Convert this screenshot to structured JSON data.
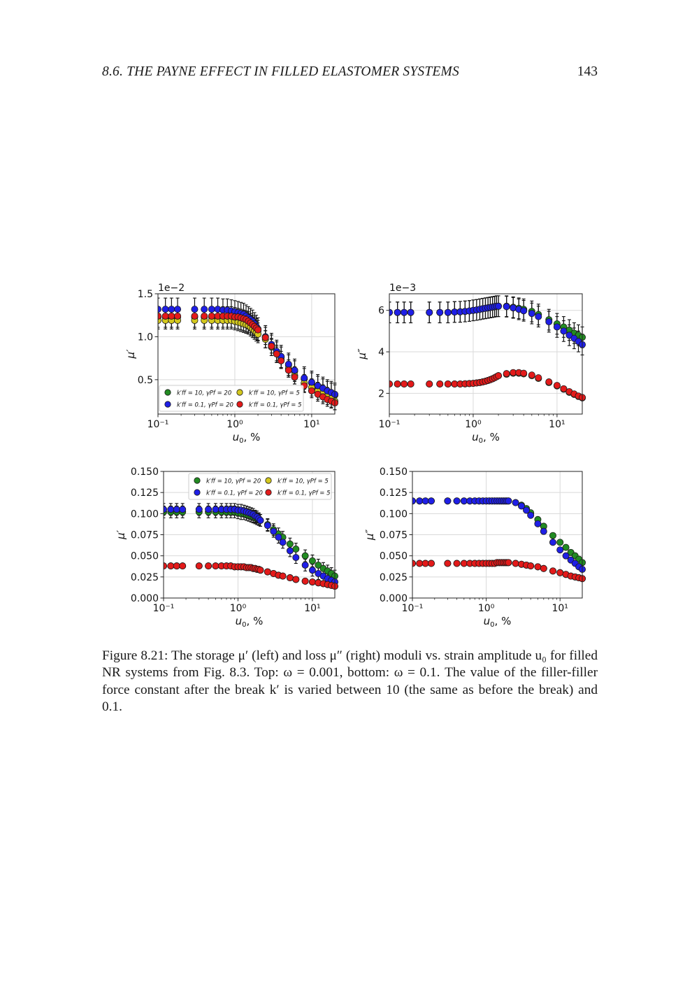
{
  "header": {
    "section_title": "8.6.  THE PAYNE EFFECT IN FILLED ELASTOMER SYSTEMS",
    "page_number": "143"
  },
  "caption": {
    "text": "Figure 8.21: The storage μ′ (left) and loss μ″ (right) moduli vs. strain amplitude u₀ for filled NR systems from Fig. 8.3. Top: ω = 0.001, bottom: ω = 0.1. The value of the filler-filler force constant after the break k′ is varied between 10 (the same as before the break) and 0.1."
  },
  "legend": {
    "entries": [
      {
        "label": "k′ff = 10, γPf = 20",
        "color": "#228b22"
      },
      {
        "label": "k′ff = 10, γPf = 5",
        "color": "#d4c81e"
      },
      {
        "label": "k′ff = 0.1, γPf = 20",
        "color": "#1f1fe6"
      },
      {
        "label": "k′ff = 0.1, γPf = 5",
        "color": "#e31a1a"
      }
    ]
  },
  "chart_data": [
    {
      "type": "scatter",
      "panel": "top-left",
      "xscale": "log",
      "xlim": [
        0.1,
        20
      ],
      "ylim": [
        0.1,
        1.5
      ],
      "offset_text": "1e−2",
      "xlabel": "u0, %",
      "ylabel": "μ′",
      "legend_position": "lower-left",
      "grid": true,
      "xticks": [
        {
          "v": 0.1,
          "label": "10⁻¹"
        },
        {
          "v": 1,
          "label": "10⁰"
        },
        {
          "v": 10,
          "label": "10¹"
        }
      ],
      "yticks": [
        {
          "v": 0.5,
          "label": "0.5"
        },
        {
          "v": 1.0,
          "label": "1.0"
        },
        {
          "v": 1.5,
          "label": "1.5"
        }
      ],
      "x": [
        0.1,
        0.125,
        0.15,
        0.18,
        0.3,
        0.4,
        0.5,
        0.6,
        0.7,
        0.8,
        0.9,
        1.0,
        1.1,
        1.2,
        1.3,
        1.4,
        1.5,
        1.6,
        1.7,
        1.8,
        1.9,
        2.0,
        2.5,
        3.0,
        3.5,
        4.0,
        5.0,
        6.0,
        8.0,
        10.0,
        12.0,
        14.0,
        16.0,
        18.0,
        20.0
      ],
      "series": [
        {
          "color": "#228b22",
          "err": 0.12,
          "y": [
            1.23,
            1.23,
            1.23,
            1.23,
            1.23,
            1.23,
            1.23,
            1.23,
            1.23,
            1.23,
            1.23,
            1.22,
            1.21,
            1.2,
            1.19,
            1.18,
            1.17,
            1.15,
            1.13,
            1.11,
            1.09,
            1.07,
            0.99,
            0.9,
            0.82,
            0.76,
            0.67,
            0.6,
            0.51,
            0.46,
            0.42,
            0.39,
            0.36,
            0.34,
            0.32
          ]
        },
        {
          "color": "#d4c81e",
          "err": 0.1,
          "y": [
            1.19,
            1.19,
            1.19,
            1.19,
            1.19,
            1.19,
            1.19,
            1.19,
            1.19,
            1.19,
            1.19,
            1.18,
            1.17,
            1.16,
            1.15,
            1.14,
            1.13,
            1.11,
            1.09,
            1.07,
            1.05,
            1.03,
            0.97,
            0.88,
            0.8,
            0.73,
            0.63,
            0.55,
            0.46,
            0.41,
            0.37,
            0.34,
            0.31,
            0.28,
            0.25
          ]
        },
        {
          "color": "#1f1fe6",
          "err": 0.13,
          "y": [
            1.32,
            1.32,
            1.32,
            1.32,
            1.32,
            1.32,
            1.32,
            1.32,
            1.31,
            1.31,
            1.3,
            1.29,
            1.28,
            1.27,
            1.26,
            1.24,
            1.22,
            1.2,
            1.18,
            1.15,
            1.12,
            1.09,
            1.0,
            0.91,
            0.83,
            0.77,
            0.68,
            0.61,
            0.52,
            0.47,
            0.43,
            0.4,
            0.37,
            0.35,
            0.33
          ]
        },
        {
          "color": "#e31a1a",
          "err": 0.08,
          "y": [
            1.24,
            1.24,
            1.24,
            1.24,
            1.24,
            1.24,
            1.24,
            1.24,
            1.24,
            1.24,
            1.24,
            1.23,
            1.23,
            1.22,
            1.21,
            1.2,
            1.18,
            1.16,
            1.14,
            1.12,
            1.1,
            1.08,
            0.99,
            0.89,
            0.8,
            0.72,
            0.61,
            0.53,
            0.43,
            0.37,
            0.33,
            0.3,
            0.27,
            0.25,
            0.23
          ]
        }
      ]
    },
    {
      "type": "scatter",
      "panel": "top-right",
      "xscale": "log",
      "xlim": [
        0.1,
        20
      ],
      "ylim": [
        1.0,
        6.8
      ],
      "offset_text": "1e−3",
      "xlabel": "u0, %",
      "ylabel": "μ″",
      "grid": true,
      "xticks": [
        {
          "v": 0.1,
          "label": "10⁻¹"
        },
        {
          "v": 1,
          "label": "10⁰"
        },
        {
          "v": 10,
          "label": "10¹"
        }
      ],
      "yticks": [
        {
          "v": 2,
          "label": "2"
        },
        {
          "v": 4,
          "label": "4"
        },
        {
          "v": 6,
          "label": "6"
        }
      ],
      "x": [
        0.1,
        0.125,
        0.15,
        0.18,
        0.3,
        0.4,
        0.5,
        0.6,
        0.7,
        0.8,
        0.9,
        1.0,
        1.1,
        1.2,
        1.3,
        1.4,
        1.5,
        1.6,
        1.7,
        1.8,
        1.9,
        2.0,
        2.5,
        3.0,
        3.5,
        4.0,
        5.0,
        6.0,
        8.0,
        10.0,
        12.0,
        14.0,
        16.0,
        18.0,
        20.0
      ],
      "series": [
        {
          "color": "#228b22",
          "err": 0.5,
          "y": [
            5.9,
            5.9,
            5.9,
            5.9,
            5.9,
            5.9,
            5.9,
            5.92,
            5.93,
            5.95,
            5.97,
            6.0,
            6.02,
            6.05,
            6.08,
            6.1,
            6.12,
            6.14,
            6.16,
            6.18,
            6.2,
            6.2,
            6.2,
            6.15,
            6.1,
            6.05,
            5.95,
            5.8,
            5.55,
            5.35,
            5.2,
            5.05,
            4.9,
            4.8,
            4.7
          ]
        },
        {
          "color": "#d4c81e",
          "err": 0.0,
          "y": [
            2.45,
            2.45,
            2.45,
            2.45,
            2.45,
            2.45,
            2.45,
            2.45,
            2.45,
            2.46,
            2.47,
            2.48,
            2.5,
            2.52,
            2.55,
            2.58,
            2.62,
            2.66,
            2.7,
            2.75,
            2.8,
            2.85,
            2.92,
            2.97,
            2.97,
            2.94,
            2.85,
            2.72,
            2.52,
            2.36,
            2.2,
            2.05,
            1.95,
            1.85,
            1.78
          ]
        },
        {
          "color": "#1f1fe6",
          "err": 0.5,
          "y": [
            5.9,
            5.9,
            5.9,
            5.9,
            5.9,
            5.9,
            5.9,
            5.92,
            5.93,
            5.95,
            5.97,
            6.0,
            6.02,
            6.05,
            6.08,
            6.1,
            6.12,
            6.14,
            6.16,
            6.18,
            6.2,
            6.2,
            6.18,
            6.12,
            6.05,
            5.98,
            5.85,
            5.7,
            5.45,
            5.2,
            5.0,
            4.8,
            4.65,
            4.5,
            4.35
          ]
        },
        {
          "color": "#e31a1a",
          "err": 0.0,
          "y": [
            2.45,
            2.45,
            2.45,
            2.45,
            2.45,
            2.45,
            2.45,
            2.45,
            2.45,
            2.46,
            2.47,
            2.48,
            2.5,
            2.52,
            2.55,
            2.58,
            2.62,
            2.66,
            2.7,
            2.75,
            2.8,
            2.85,
            2.95,
            3.0,
            3.0,
            2.97,
            2.88,
            2.75,
            2.55,
            2.38,
            2.22,
            2.08,
            1.97,
            1.87,
            1.8
          ]
        }
      ]
    },
    {
      "type": "scatter",
      "panel": "bottom-left",
      "xscale": "log",
      "xlim": [
        0.1,
        20
      ],
      "ylim": [
        0.0,
        0.15
      ],
      "xlabel": "u0, %",
      "ylabel": "μ′",
      "legend_position": "top-right",
      "grid": true,
      "xticks": [
        {
          "v": 0.1,
          "label": "10⁻¹"
        },
        {
          "v": 1,
          "label": "10⁰"
        },
        {
          "v": 10,
          "label": "10¹"
        }
      ],
      "yticks": [
        {
          "v": 0.0,
          "label": "0.000"
        },
        {
          "v": 0.025,
          "label": "0.025"
        },
        {
          "v": 0.05,
          "label": "0.050"
        },
        {
          "v": 0.075,
          "label": "0.075"
        },
        {
          "v": 0.1,
          "label": "0.100"
        },
        {
          "v": 0.125,
          "label": "0.125"
        },
        {
          "v": 0.15,
          "label": "0.150"
        }
      ],
      "x": [
        0.1,
        0.125,
        0.15,
        0.18,
        0.3,
        0.4,
        0.5,
        0.6,
        0.7,
        0.8,
        0.9,
        1.0,
        1.1,
        1.2,
        1.3,
        1.4,
        1.5,
        1.6,
        1.7,
        1.8,
        1.9,
        2.0,
        2.5,
        3.0,
        3.5,
        4.0,
        5.0,
        6.0,
        8.0,
        10.0,
        12.0,
        14.0,
        16.0,
        18.0,
        20.0
      ],
      "series": [
        {
          "color": "#228b22",
          "err": 0.007,
          "y": [
            0.102,
            0.102,
            0.102,
            0.102,
            0.102,
            0.102,
            0.102,
            0.102,
            0.102,
            0.102,
            0.102,
            0.101,
            0.1,
            0.1,
            0.099,
            0.098,
            0.097,
            0.096,
            0.095,
            0.094,
            0.093,
            0.092,
            0.087,
            0.081,
            0.076,
            0.072,
            0.064,
            0.058,
            0.05,
            0.044,
            0.039,
            0.035,
            0.032,
            0.029,
            0.026
          ]
        },
        {
          "color": "#d4c81e",
          "err": 0.0,
          "y": [
            0.038,
            0.038,
            0.038,
            0.038,
            0.038,
            0.038,
            0.038,
            0.038,
            0.038,
            0.038,
            0.037,
            0.037,
            0.037,
            0.037,
            0.036,
            0.036,
            0.036,
            0.035,
            0.035,
            0.034,
            0.034,
            0.033,
            0.031,
            0.029,
            0.027,
            0.026,
            0.024,
            0.022,
            0.02,
            0.019,
            0.018,
            0.017,
            0.016,
            0.015,
            0.014
          ]
        },
        {
          "color": "#1f1fe6",
          "err": 0.007,
          "y": [
            0.105,
            0.105,
            0.105,
            0.105,
            0.105,
            0.105,
            0.105,
            0.105,
            0.105,
            0.105,
            0.105,
            0.104,
            0.104,
            0.103,
            0.102,
            0.101,
            0.1,
            0.099,
            0.097,
            0.096,
            0.094,
            0.092,
            0.086,
            0.079,
            0.072,
            0.066,
            0.056,
            0.048,
            0.039,
            0.033,
            0.029,
            0.026,
            0.023,
            0.021,
            0.019
          ]
        },
        {
          "color": "#e31a1a",
          "err": 0.0,
          "y": [
            0.038,
            0.038,
            0.038,
            0.038,
            0.038,
            0.038,
            0.038,
            0.038,
            0.038,
            0.038,
            0.037,
            0.037,
            0.037,
            0.037,
            0.036,
            0.036,
            0.036,
            0.035,
            0.035,
            0.034,
            0.034,
            0.033,
            0.031,
            0.029,
            0.027,
            0.026,
            0.024,
            0.022,
            0.02,
            0.019,
            0.018,
            0.017,
            0.016,
            0.015,
            0.014
          ]
        }
      ]
    },
    {
      "type": "scatter",
      "panel": "bottom-right",
      "xscale": "log",
      "xlim": [
        0.1,
        20
      ],
      "ylim": [
        0.0,
        0.15
      ],
      "xlabel": "u0, %",
      "ylabel": "μ″",
      "grid": true,
      "xticks": [
        {
          "v": 0.1,
          "label": "10⁻¹"
        },
        {
          "v": 1,
          "label": "10⁰"
        },
        {
          "v": 10,
          "label": "10¹"
        }
      ],
      "yticks": [
        {
          "v": 0.0,
          "label": "0.000"
        },
        {
          "v": 0.025,
          "label": "0.025"
        },
        {
          "v": 0.05,
          "label": "0.050"
        },
        {
          "v": 0.075,
          "label": "0.075"
        },
        {
          "v": 0.1,
          "label": "0.100"
        },
        {
          "v": 0.125,
          "label": "0.125"
        },
        {
          "v": 0.15,
          "label": "0.150"
        }
      ],
      "x": [
        0.1,
        0.125,
        0.15,
        0.18,
        0.3,
        0.4,
        0.5,
        0.6,
        0.7,
        0.8,
        0.9,
        1.0,
        1.1,
        1.2,
        1.3,
        1.4,
        1.5,
        1.6,
        1.7,
        1.8,
        1.9,
        2.0,
        2.5,
        3.0,
        3.5,
        4.0,
        5.0,
        6.0,
        8.0,
        10.0,
        12.0,
        14.0,
        16.0,
        18.0,
        20.0
      ],
      "series": [
        {
          "color": "#228b22",
          "err": 0.003,
          "y": [
            0.115,
            0.115,
            0.115,
            0.115,
            0.115,
            0.115,
            0.115,
            0.115,
            0.115,
            0.115,
            0.115,
            0.115,
            0.115,
            0.115,
            0.115,
            0.115,
            0.115,
            0.115,
            0.115,
            0.115,
            0.115,
            0.115,
            0.113,
            0.11,
            0.106,
            0.101,
            0.093,
            0.085,
            0.074,
            0.066,
            0.06,
            0.054,
            0.05,
            0.046,
            0.042
          ]
        },
        {
          "color": "#d4c81e",
          "err": 0.0,
          "y": [
            0.041,
            0.041,
            0.041,
            0.041,
            0.041,
            0.041,
            0.041,
            0.041,
            0.041,
            0.041,
            0.041,
            0.041,
            0.041,
            0.041,
            0.041,
            0.042,
            0.042,
            0.042,
            0.042,
            0.042,
            0.042,
            0.042,
            0.041,
            0.04,
            0.039,
            0.038,
            0.037,
            0.035,
            0.032,
            0.03,
            0.028,
            0.026,
            0.025,
            0.024,
            0.023
          ]
        },
        {
          "color": "#1f1fe6",
          "err": 0.003,
          "y": [
            0.115,
            0.115,
            0.115,
            0.115,
            0.115,
            0.115,
            0.115,
            0.115,
            0.115,
            0.115,
            0.115,
            0.115,
            0.115,
            0.115,
            0.115,
            0.115,
            0.115,
            0.115,
            0.115,
            0.115,
            0.115,
            0.115,
            0.113,
            0.109,
            0.104,
            0.098,
            0.088,
            0.079,
            0.066,
            0.057,
            0.05,
            0.045,
            0.041,
            0.037,
            0.034
          ]
        },
        {
          "color": "#e31a1a",
          "err": 0.0,
          "y": [
            0.041,
            0.041,
            0.041,
            0.041,
            0.041,
            0.041,
            0.041,
            0.041,
            0.041,
            0.041,
            0.041,
            0.041,
            0.041,
            0.041,
            0.041,
            0.042,
            0.042,
            0.042,
            0.042,
            0.042,
            0.042,
            0.042,
            0.041,
            0.04,
            0.039,
            0.038,
            0.037,
            0.035,
            0.032,
            0.03,
            0.028,
            0.026,
            0.025,
            0.024,
            0.023
          ]
        }
      ]
    }
  ]
}
